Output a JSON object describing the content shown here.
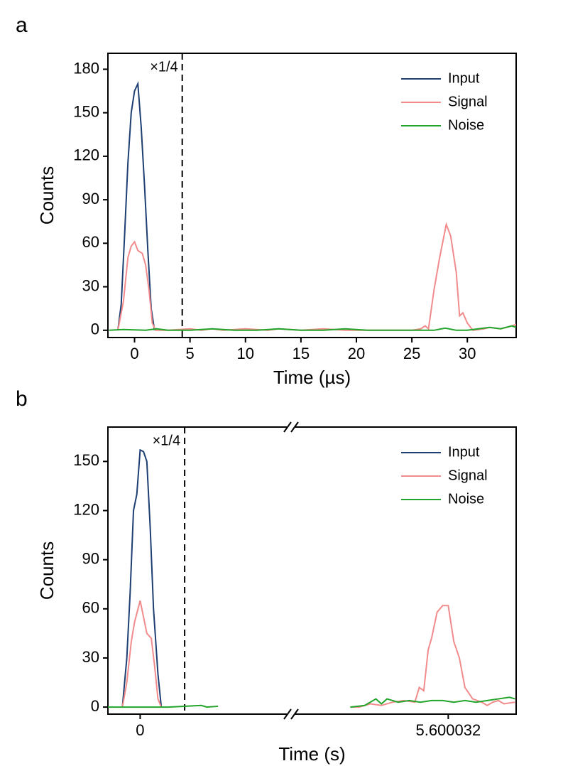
{
  "chart_data": [
    {
      "type": "line",
      "panel_label": "a",
      "xlabel": "Time (µs)",
      "ylabel": "Counts",
      "annotation": "×1/4",
      "vline": 4.3,
      "xlim": [
        -2.4,
        34.4
      ],
      "xticks": [
        0,
        5,
        10,
        15,
        20,
        25,
        30
      ],
      "ylim": [
        -5,
        191
      ],
      "yticks": [
        0,
        30,
        60,
        90,
        120,
        150,
        180
      ],
      "legend": "upper right",
      "series": [
        {
          "name": "Input",
          "color": "#1d3f72",
          "x": [
            -1.5,
            -1.2,
            -0.9,
            -0.6,
            -0.3,
            0,
            0.3,
            0.6,
            0.9,
            1.2,
            1.5,
            1.8
          ],
          "values": [
            0,
            18,
            65,
            115,
            150,
            165,
            170,
            140,
            100,
            55,
            15,
            0
          ]
        },
        {
          "name": "Signal",
          "color": "#f28b8b",
          "x": [
            -1.5,
            -1,
            -0.6,
            -0.3,
            0,
            0.3,
            0.7,
            1,
            1.3,
            1.6,
            1.9,
            3,
            5,
            6,
            7,
            8,
            10,
            12,
            13,
            15,
            17,
            19,
            21,
            23,
            25,
            25.8,
            26.2,
            26.5,
            27,
            27.5,
            28.1,
            28.5,
            29,
            29.3,
            29.6,
            30,
            30.5,
            31.5,
            32,
            33,
            34,
            34.4
          ],
          "values": [
            0,
            20,
            50,
            58,
            61,
            55,
            53,
            45,
            28,
            5,
            0,
            0,
            1,
            0,
            1,
            0,
            1,
            0,
            1,
            0,
            1,
            0,
            0,
            0,
            0,
            1,
            3,
            1,
            28,
            50,
            73,
            65,
            40,
            10,
            12,
            5,
            0,
            1,
            2,
            1,
            3,
            4
          ]
        },
        {
          "name": "Noise",
          "color": "#22a52a",
          "x": [
            -2.3,
            -1,
            1,
            2,
            3,
            5,
            7,
            9,
            11,
            13,
            15,
            17,
            19,
            21,
            23,
            25,
            27,
            28,
            29,
            30,
            31,
            32,
            33,
            34,
            34.4
          ],
          "values": [
            0,
            0.5,
            0,
            1,
            0,
            0,
            1,
            0,
            0,
            1,
            0,
            0,
            1,
            0,
            0,
            0,
            0,
            1.5,
            0,
            0,
            1,
            2,
            1,
            3,
            2
          ]
        }
      ]
    },
    {
      "type": "line",
      "panel_label": "b",
      "xlabel": "Time (s)",
      "ylabel": "Counts",
      "annotation": "×1/4",
      "vline": 4e-06,
      "xlim_segments": [
        [
          -2.9e-06,
          1.325e-05
        ],
        [
          5.6000182,
          5.6000381
        ]
      ],
      "xticks": [
        0,
        5.600032
      ],
      "ylim": [
        -4.3,
        171
      ],
      "yticks": [
        0,
        30,
        60,
        90,
        120,
        150
      ],
      "legend": "upper right",
      "series": [
        {
          "name": "Input",
          "color": "#1d3f72",
          "x": [
            -1.6e-06,
            -1.2e-06,
            -9e-07,
            -6e-07,
            -3e-07,
            0,
            3e-07,
            6e-07,
            9e-07,
            1.2e-06,
            1.6e-06,
            1.9e-06
          ],
          "values": [
            0,
            30,
            70,
            120,
            130,
            157,
            156,
            150,
            110,
            60,
            20,
            0
          ]
        },
        {
          "name": "Signal",
          "color": "#f28b8b",
          "x": [
            -1.6e-06,
            -1.2e-06,
            -8e-07,
            -5e-07,
            0,
            3e-07,
            6e-07,
            1e-06,
            1.3e-06,
            1.6e-06,
            1.9e-06,
            5.6000232,
            5.600024,
            5.600025,
            5.600026,
            5.600027,
            5.600028,
            5.600029,
            5.6000294,
            5.6000298,
            5.6000302,
            5.6000305,
            5.600031,
            5.6000315,
            5.600032,
            5.6000325,
            5.600033,
            5.6000335,
            5.6000342,
            5.600035,
            5.6000355,
            5.600036,
            5.6000365,
            5.600037,
            5.600038
          ],
          "values": [
            0,
            15,
            40,
            52,
            65,
            55,
            45,
            42,
            25,
            5,
            0,
            0,
            0,
            2,
            1,
            3,
            4,
            3,
            12,
            10,
            35,
            42,
            58,
            62,
            62,
            40,
            30,
            12,
            5,
            3,
            1,
            3,
            4,
            2,
            3
          ]
        },
        {
          "name": "Noise",
          "color": "#22a52a",
          "x": [
            -2.9e-06,
            -1e-06,
            1e-06,
            2.5e-06,
            5.5e-06,
            6e-06,
            7e-06,
            5.6000232,
            5.6000245,
            5.6000255,
            5.600026,
            5.6000265,
            5.6000275,
            5.6000285,
            5.6000295,
            5.6000305,
            5.6000315,
            5.6000325,
            5.6000335,
            5.6000345,
            5.6000355,
            5.6000365,
            5.6000375,
            5.600038
          ],
          "values": [
            0,
            0,
            0,
            0,
            1,
            0,
            0.5,
            0,
            1,
            5,
            2,
            5,
            3,
            4,
            3,
            4,
            4,
            3,
            4,
            3,
            4,
            5,
            6,
            5
          ]
        }
      ]
    }
  ]
}
